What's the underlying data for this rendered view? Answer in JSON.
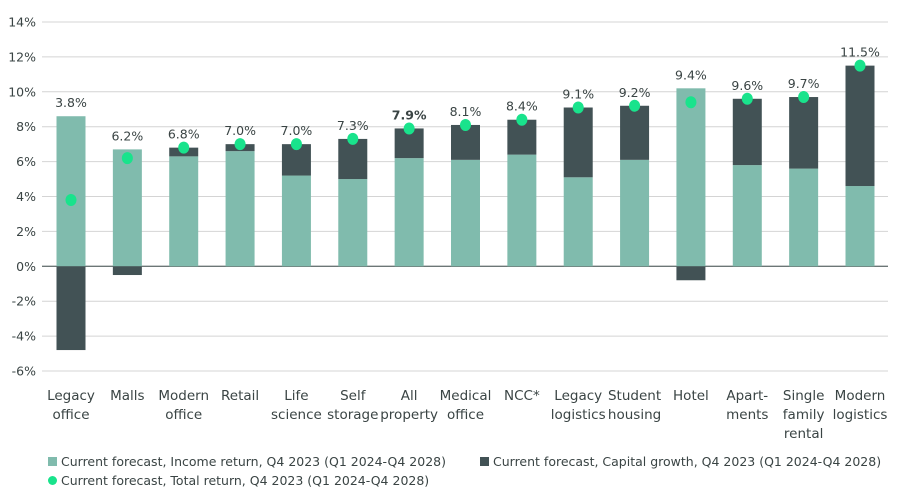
{
  "chart_data": {
    "type": "bar",
    "stacked": true,
    "categories": [
      [
        "Legacy",
        "office"
      ],
      [
        "Malls"
      ],
      [
        "Modern",
        "office"
      ],
      [
        "Retail"
      ],
      [
        "Life",
        "science"
      ],
      [
        "Self",
        "storage"
      ],
      [
        "All",
        "property"
      ],
      [
        "Medical",
        "office"
      ],
      [
        "NCC*"
      ],
      [
        "Legacy",
        "logistics"
      ],
      [
        "Student",
        "housing"
      ],
      [
        "Hotel"
      ],
      [
        "Apart-",
        "ments"
      ],
      [
        "Single",
        "family",
        "rental"
      ],
      [
        "Modern",
        "logistics"
      ]
    ],
    "series": [
      {
        "name": "Current forecast, Income return, Q4 2023 (Q1 2024-Q4 2028)",
        "color": "#80bbad",
        "values": [
          8.6,
          6.7,
          6.3,
          6.6,
          5.2,
          5.0,
          6.2,
          6.1,
          6.4,
          5.1,
          6.1,
          10.2,
          5.8,
          5.6,
          4.6
        ]
      },
      {
        "name": "Current forecast, Capital growth, Q4 2023 (Q1 2024-Q4 2028)",
        "color": "#425255",
        "values": [
          -4.8,
          -0.5,
          0.5,
          0.4,
          1.8,
          2.3,
          1.7,
          2.0,
          2.0,
          4.0,
          3.1,
          -0.8,
          3.8,
          4.1,
          6.9
        ]
      },
      {
        "name": "Current forecast, Total return, Q4 2023 (Q1 2024-Q4 2028)",
        "color": "#19e38c",
        "type": "scatter",
        "values": [
          3.8,
          6.2,
          6.8,
          7.0,
          7.0,
          7.3,
          7.9,
          8.1,
          8.4,
          9.1,
          9.2,
          9.4,
          9.6,
          9.7,
          11.5
        ]
      }
    ],
    "data_labels": [
      "3.8%",
      "6.2%",
      "6.8%",
      "7.0%",
      "7.0%",
      "7.3%",
      "7.9%",
      "8.1%",
      "8.4%",
      "9.1%",
      "9.2%",
      "9.4%",
      "9.6%",
      "9.7%",
      "11.5%"
    ],
    "bold_label_index": 6,
    "yticks": [
      "14%",
      "12%",
      "10%",
      "8%",
      "6%",
      "4%",
      "2%",
      "0%",
      "-2%",
      "-4%",
      "-6%"
    ],
    "ylim": [
      -6,
      14
    ],
    "grid": true,
    "legend_position": "bottom"
  }
}
